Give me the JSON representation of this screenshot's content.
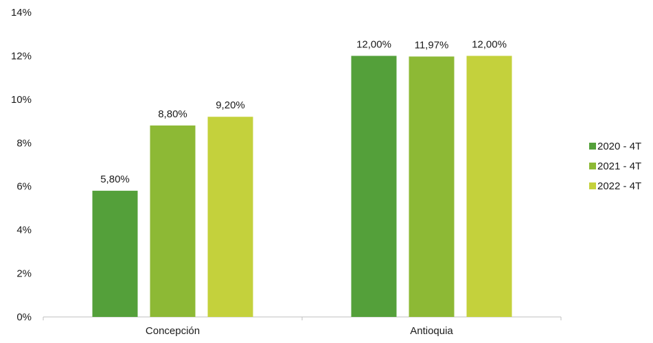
{
  "chart_data": {
    "type": "bar",
    "categories": [
      "Concepción",
      "Antioquia"
    ],
    "series": [
      {
        "name": "2020 - 4T",
        "values": [
          5.8,
          12.0
        ],
        "labels": [
          "5,80%",
          "12,00%"
        ],
        "color": "#54a03a"
      },
      {
        "name": "2021 - 4T",
        "values": [
          8.8,
          11.97
        ],
        "labels": [
          "8,80%",
          "11,97%"
        ],
        "color": "#8db935"
      },
      {
        "name": "2022 - 4T",
        "values": [
          9.2,
          12.0
        ],
        "labels": [
          "9,20%",
          "12,00%"
        ],
        "color": "#c4d13c"
      }
    ],
    "ylim": [
      0,
      14
    ],
    "yticks": [
      0,
      2,
      4,
      6,
      8,
      10,
      12,
      14
    ],
    "ytick_labels": [
      "0%",
      "2%",
      "4%",
      "6%",
      "8%",
      "10%",
      "12%",
      "14%"
    ],
    "grid": false,
    "legend_position": "right",
    "title": "",
    "xlabel": "",
    "ylabel": ""
  }
}
